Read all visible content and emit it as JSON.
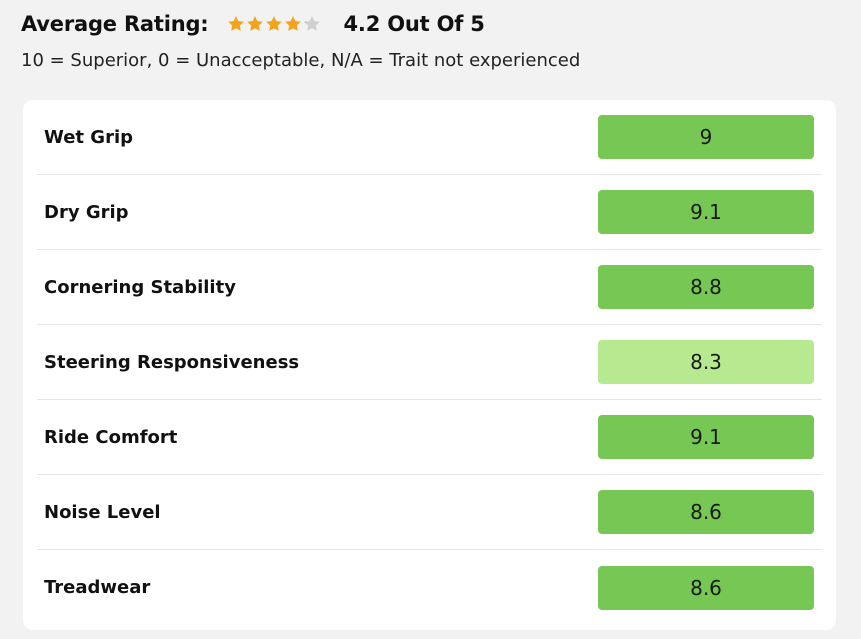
{
  "header": {
    "label": "Average Rating:",
    "value_text": "4.2 Out Of 5",
    "rating": 4.2,
    "max_rating": 5,
    "star_color": "#f5a31a",
    "star_empty_color": "#cfcfcf"
  },
  "legend": "10 = Superior, 0 = Unacceptable, N/A = Trait not experienced",
  "colors": {
    "score_high": "#76c753",
    "score_mid": "#b7ea90"
  },
  "ratings": [
    {
      "trait": "Wet Grip",
      "score": "9",
      "level": "high"
    },
    {
      "trait": "Dry Grip",
      "score": "9.1",
      "level": "high"
    },
    {
      "trait": "Cornering Stability",
      "score": "8.8",
      "level": "high"
    },
    {
      "trait": "Steering Responsiveness",
      "score": "8.3",
      "level": "mid"
    },
    {
      "trait": "Ride Comfort",
      "score": "9.1",
      "level": "high"
    },
    {
      "trait": "Noise Level",
      "score": "8.6",
      "level": "high"
    },
    {
      "trait": "Treadwear",
      "score": "8.6",
      "level": "high"
    }
  ]
}
